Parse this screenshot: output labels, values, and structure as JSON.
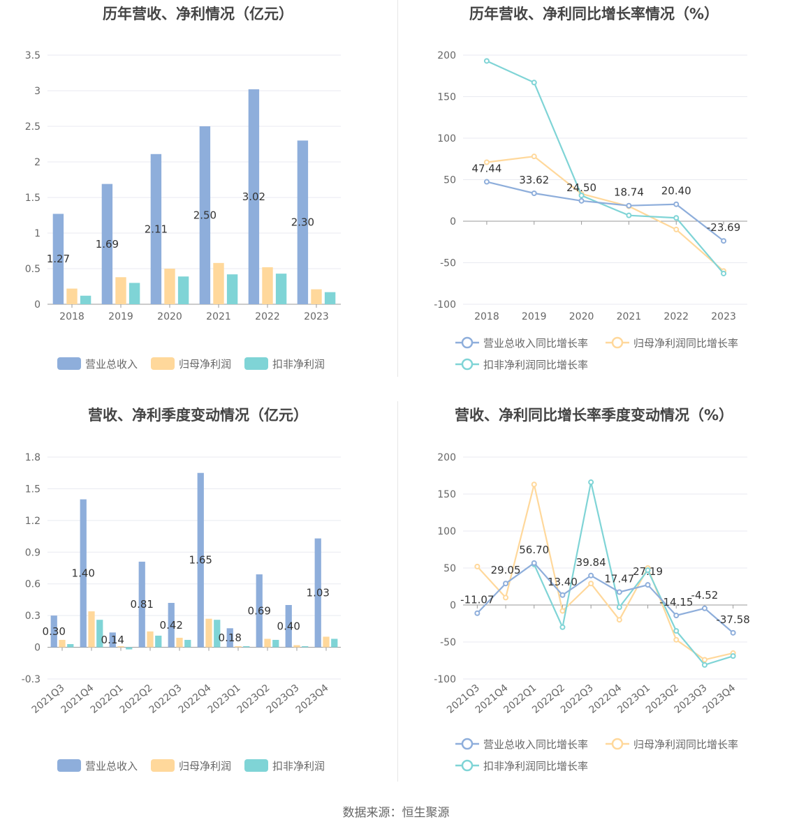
{
  "footer": "数据来源：恒生聚源",
  "colors": {
    "blue": "#8eaedb",
    "yellow": "#ffd89b",
    "teal": "#7fd4d6",
    "grid": "#e8eaf0",
    "axis": "#999999"
  },
  "chart_data": [
    {
      "type": "bar",
      "title": "历年营收、净利情况（亿元）",
      "categories": [
        "2018",
        "2019",
        "2020",
        "2021",
        "2022",
        "2023"
      ],
      "ylim": [
        0,
        3.5
      ],
      "yticks": [
        "0",
        "0.5",
        "1",
        "1.5",
        "2",
        "2.5",
        "3",
        "3.5"
      ],
      "series": [
        {
          "name": "营业总收入",
          "color": "#8eaedb",
          "values": [
            1.27,
            1.69,
            2.11,
            2.5,
            3.02,
            2.3
          ],
          "labels": [
            "1.27",
            "1.69",
            "2.11",
            "2.50",
            "3.02",
            "2.30"
          ]
        },
        {
          "name": "归母净利润",
          "color": "#ffd89b",
          "values": [
            0.22,
            0.38,
            0.5,
            0.58,
            0.52,
            0.21
          ]
        },
        {
          "name": "扣非净利润",
          "color": "#7fd4d6",
          "values": [
            0.12,
            0.3,
            0.39,
            0.42,
            0.43,
            0.17
          ]
        }
      ]
    },
    {
      "type": "line",
      "title": "历年营收、净利同比增长率情况（%）",
      "categories": [
        "2018",
        "2019",
        "2020",
        "2021",
        "2022",
        "2023"
      ],
      "ylim": [
        -100,
        200
      ],
      "yticks": [
        "-100",
        "-50",
        "0",
        "50",
        "100",
        "150",
        "200"
      ],
      "series": [
        {
          "name": "营业总收入同比增长率",
          "color": "#8eaedb",
          "values": [
            47.44,
            33.62,
            24.5,
            18.74,
            20.4,
            -23.69
          ],
          "labels": [
            "47.44",
            "33.62",
            "24.50",
            "18.74",
            "20.40",
            "-23.69"
          ]
        },
        {
          "name": "归母净利润同比增长率",
          "color": "#ffd89b",
          "values": [
            71,
            78,
            33,
            18,
            -10,
            -60
          ]
        },
        {
          "name": "扣非净利润同比增长率",
          "color": "#7fd4d6",
          "values": [
            193,
            167,
            31,
            7,
            4,
            -63
          ]
        }
      ]
    },
    {
      "type": "bar",
      "title": "营收、净利季度变动情况（亿元）",
      "categories": [
        "2021Q3",
        "2021Q4",
        "2022Q1",
        "2022Q2",
        "2022Q3",
        "2022Q4",
        "2023Q1",
        "2023Q2",
        "2023Q3",
        "2023Q4"
      ],
      "ylim": [
        -0.3,
        1.8
      ],
      "yticks": [
        "-0.3",
        "0",
        "0.3",
        "0.6",
        "0.9",
        "1.2",
        "1.5",
        "1.8"
      ],
      "series": [
        {
          "name": "营业总收入",
          "color": "#8eaedb",
          "values": [
            0.3,
            1.4,
            0.14,
            0.81,
            0.42,
            1.65,
            0.18,
            0.69,
            0.4,
            1.03
          ],
          "labels": [
            "0.30",
            "1.40",
            "0.14",
            "0.81",
            "0.42",
            "1.65",
            "0.18",
            "0.69",
            "0.40",
            "1.03"
          ]
        },
        {
          "name": "归母净利润",
          "color": "#ffd89b",
          "values": [
            0.07,
            0.34,
            0.01,
            0.15,
            0.09,
            0.27,
            0.01,
            0.08,
            0.02,
            0.1
          ]
        },
        {
          "name": "扣非净利润",
          "color": "#7fd4d6",
          "values": [
            0.03,
            0.26,
            -0.02,
            0.11,
            0.07,
            0.26,
            0.01,
            0.07,
            0.01,
            0.08
          ]
        }
      ]
    },
    {
      "type": "line",
      "title": "营收、净利同比增长率季度变动情况（%）",
      "categories": [
        "2021Q3",
        "2021Q4",
        "2022Q1",
        "2022Q2",
        "2022Q3",
        "2022Q4",
        "2023Q1",
        "2023Q2",
        "2023Q3",
        "2023Q4"
      ],
      "ylim": [
        -100,
        200
      ],
      "yticks": [
        "-100",
        "-50",
        "0",
        "50",
        "100",
        "150",
        "200"
      ],
      "series": [
        {
          "name": "营业总收入同比增长率",
          "color": "#8eaedb",
          "values": [
            -11.07,
            29.05,
            56.7,
            13.4,
            39.84,
            17.47,
            27.19,
            -14.15,
            -4.52,
            -37.58
          ],
          "labels": [
            "-11.07",
            "29.05",
            "56.70",
            "13.40",
            "39.84",
            "17.47",
            "27.19",
            "-14.15",
            "-4.52",
            "-37.58"
          ]
        },
        {
          "name": "归母净利润同比增长率",
          "color": "#ffd89b",
          "values": [
            52,
            10,
            163,
            -8,
            29,
            -20,
            50,
            -47,
            -74,
            -65
          ]
        },
        {
          "name": "扣非净利润同比增长率",
          "color": "#7fd4d6",
          "values": [
            null,
            null,
            55,
            -30,
            166,
            -3,
            47,
            -35,
            -81,
            -69
          ]
        }
      ]
    }
  ]
}
